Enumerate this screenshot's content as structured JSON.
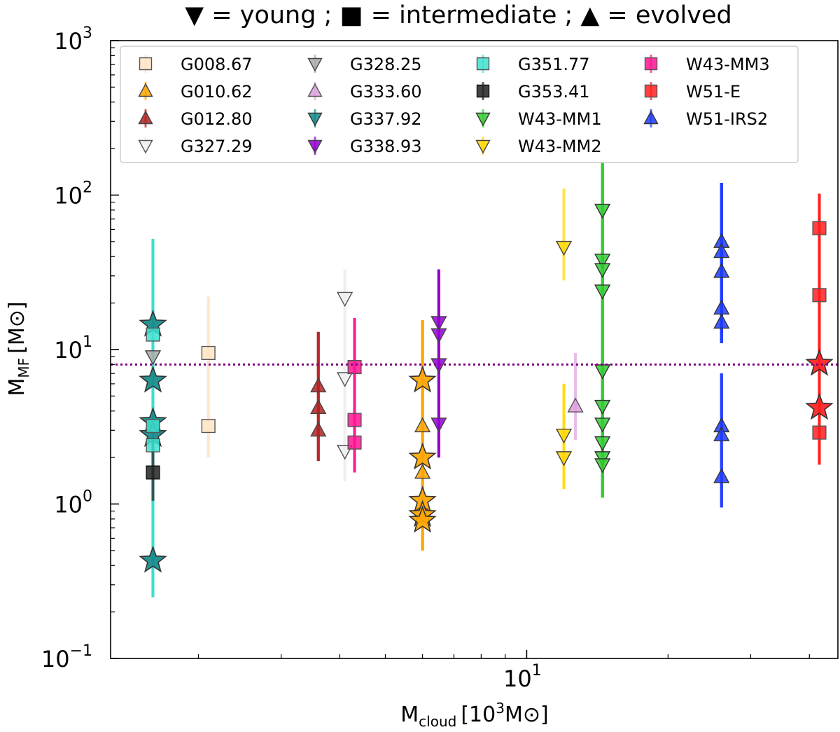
{
  "chart_data": {
    "type": "scatter",
    "title": "▼ = young ; ■ = intermediate ; ▲ = evolved",
    "xlabel": {
      "main": "M",
      "sub": "cloud",
      "rest": "[10",
      "sup": "3",
      "unit": "M⊙]"
    },
    "ylabel": {
      "main": "M",
      "sub": "MF",
      "rest": "[M⊙]"
    },
    "xscale": "log",
    "yscale": "log",
    "xlim": [
      1.3,
      46.0
    ],
    "ylim": [
      0.1,
      1000
    ],
    "y_ticks": [
      {
        "value": 0.1,
        "base": "10",
        "exp": "−1"
      },
      {
        "value": 1,
        "base": "10",
        "exp": "0"
      },
      {
        "value": 10,
        "base": "10",
        "exp": "1"
      },
      {
        "value": 100,
        "base": "10",
        "exp": "2"
      },
      {
        "value": 1000,
        "base": "10",
        "exp": "3"
      }
    ],
    "x_ticks": [
      {
        "value": 10,
        "base": "10",
        "exp": "1"
      }
    ],
    "reference_line": {
      "y": 8,
      "color": "#800080",
      "style": "dotted"
    },
    "legend_position": "top",
    "series": [
      {
        "name": "G008.67",
        "marker": "square",
        "color": "#ffe4c4",
        "edge": "#555555",
        "points": [
          {
            "x": 2.1,
            "y": 9.5,
            "lo": 2.0,
            "hi": 22
          },
          {
            "x": 2.1,
            "y": 3.2,
            "lo": 2.0,
            "hi": 22
          }
        ]
      },
      {
        "name": "G010.62",
        "marker": "triangle-up",
        "color": "#ffa500",
        "edge": "#444444",
        "points": [
          {
            "x": 6.0,
            "y": 6.3,
            "lo": 0.5,
            "hi": 15.5,
            "star": true
          },
          {
            "x": 6.0,
            "y": 3.2,
            "lo": 0.5,
            "hi": 15.5
          },
          {
            "x": 6.0,
            "y": 2.0,
            "lo": 0.5,
            "hi": 15.5,
            "star": true
          },
          {
            "x": 6.0,
            "y": 1.6,
            "lo": 0.5,
            "hi": 15.5
          },
          {
            "x": 6.0,
            "y": 1.05,
            "lo": 0.5,
            "hi": 15.5,
            "star": true
          },
          {
            "x": 6.0,
            "y": 0.85,
            "lo": 0.5,
            "hi": 15.5,
            "star": true
          },
          {
            "x": 6.0,
            "y": 0.78,
            "lo": 0.5,
            "hi": 15.5,
            "star": true
          }
        ]
      },
      {
        "name": "G012.80",
        "marker": "triangle-up",
        "color": "#b22222",
        "edge": "#444444",
        "points": [
          {
            "x": 3.6,
            "y": 5.8,
            "lo": 1.9,
            "hi": 13
          },
          {
            "x": 3.6,
            "y": 4.2,
            "lo": 1.9,
            "hi": 13
          },
          {
            "x": 3.6,
            "y": 3.0,
            "lo": 1.9,
            "hi": 13
          }
        ]
      },
      {
        "name": "G327.29",
        "marker": "triangle-down",
        "color": "#eeeeee",
        "edge": "#555555",
        "points": [
          {
            "x": 4.1,
            "y": 21.5,
            "lo": 1.4,
            "hi": 33
          },
          {
            "x": 4.1,
            "y": 6.5,
            "lo": 1.4,
            "hi": 33
          },
          {
            "x": 4.1,
            "y": 2.2,
            "lo": 1.4,
            "hi": 33
          }
        ]
      },
      {
        "name": "G328.25",
        "marker": "triangle-down",
        "color": "#a9a9a9",
        "edge": "#444444",
        "points": [
          {
            "x": 1.6,
            "y": 9.0,
            "lo": 0.25,
            "hi": 52
          }
        ]
      },
      {
        "name": "G333.60",
        "marker": "triangle-up",
        "color": "#dda0dd",
        "edge": "#555555",
        "points": [
          {
            "x": 12.7,
            "y": 4.3,
            "lo": 2.6,
            "hi": 9.5
          }
        ]
      },
      {
        "name": "G337.92",
        "marker": "triangle-down",
        "color": "#138a8a",
        "edge": "#333333",
        "points": [
          {
            "x": 1.6,
            "y": 14.5,
            "lo": 0.25,
            "hi": 52,
            "star": true
          },
          {
            "x": 1.6,
            "y": 6.3,
            "lo": 0.25,
            "hi": 52,
            "star": true
          },
          {
            "x": 1.6,
            "y": 3.4,
            "lo": 0.25,
            "hi": 52,
            "star": true
          },
          {
            "x": 1.6,
            "y": 2.8,
            "lo": 0.25,
            "hi": 52,
            "star": true
          },
          {
            "x": 1.6,
            "y": 0.43,
            "lo": 0.25,
            "hi": 52,
            "star": true
          }
        ]
      },
      {
        "name": "G338.93",
        "marker": "triangle-down",
        "color": "#9400d3",
        "edge": "#444444",
        "points": [
          {
            "x": 6.5,
            "y": 15,
            "lo": 2.0,
            "hi": 33
          },
          {
            "x": 6.5,
            "y": 12.5,
            "lo": 2.0,
            "hi": 33
          },
          {
            "x": 6.5,
            "y": 8.0,
            "lo": 2.0,
            "hi": 33
          },
          {
            "x": 6.5,
            "y": 3.3,
            "lo": 2.0,
            "hi": 33
          }
        ]
      },
      {
        "name": "G351.77",
        "marker": "square",
        "color": "#40e0d0",
        "edge": "#555555",
        "points": [
          {
            "x": 1.6,
            "y": 12.5,
            "lo": 0.25,
            "hi": 52
          },
          {
            "x": 1.6,
            "y": 3.2,
            "lo": 0.25,
            "hi": 52
          },
          {
            "x": 1.6,
            "y": 2.4,
            "lo": 0.25,
            "hi": 52
          }
        ]
      },
      {
        "name": "G353.41",
        "marker": "square",
        "color": "#222222",
        "edge": "#111111",
        "points": [
          {
            "x": 1.6,
            "y": 1.6,
            "lo": 1.05,
            "hi": 2.6
          }
        ]
      },
      {
        "name": "W43-MM1",
        "marker": "triangle-down",
        "color": "#32cd32",
        "edge": "#333333",
        "points": [
          {
            "x": 14.5,
            "y": 80,
            "lo": 1.1,
            "hi": 290
          },
          {
            "x": 14.5,
            "y": 38,
            "lo": 1.1,
            "hi": 290
          },
          {
            "x": 14.5,
            "y": 33,
            "lo": 1.1,
            "hi": 290
          },
          {
            "x": 14.5,
            "y": 24,
            "lo": 1.1,
            "hi": 290
          },
          {
            "x": 14.5,
            "y": 7.3,
            "lo": 1.1,
            "hi": 290
          },
          {
            "x": 14.5,
            "y": 4.3,
            "lo": 1.1,
            "hi": 290
          },
          {
            "x": 14.5,
            "y": 3.3,
            "lo": 1.1,
            "hi": 290
          },
          {
            "x": 14.5,
            "y": 2.5,
            "lo": 1.1,
            "hi": 290
          },
          {
            "x": 14.5,
            "y": 2.0,
            "lo": 1.1,
            "hi": 290
          },
          {
            "x": 14.5,
            "y": 1.8,
            "lo": 1.1,
            "hi": 290
          }
        ]
      },
      {
        "name": "W43-MM2",
        "marker": "triangle-down",
        "color": "#ffd700",
        "edge": "#444444",
        "points": [
          {
            "x": 12.0,
            "y": 46,
            "lo": 28,
            "hi": 110
          },
          {
            "x": 12.0,
            "y": 2.8,
            "lo": 1.25,
            "hi": 6
          },
          {
            "x": 12.0,
            "y": 2.0,
            "lo": 1.25,
            "hi": 6
          }
        ]
      },
      {
        "name": "W43-MM3",
        "marker": "square",
        "color": "#ff1493",
        "edge": "#555555",
        "points": [
          {
            "x": 4.3,
            "y": 7.7,
            "lo": 1.6,
            "hi": 16
          },
          {
            "x": 4.3,
            "y": 3.5,
            "lo": 1.6,
            "hi": 16
          },
          {
            "x": 4.3,
            "y": 2.5,
            "lo": 1.6,
            "hi": 16
          }
        ]
      },
      {
        "name": "W51-E",
        "marker": "square",
        "color": "#ff2020",
        "edge": "#555555",
        "points": [
          {
            "x": 42.0,
            "y": 61,
            "lo": 1.8,
            "hi": 102
          },
          {
            "x": 42.0,
            "y": 22.5,
            "lo": 1.8,
            "hi": 102
          },
          {
            "x": 42.0,
            "y": 8.1,
            "lo": 1.8,
            "hi": 102,
            "star": true
          },
          {
            "x": 42.0,
            "y": 4.2,
            "lo": 1.8,
            "hi": 102,
            "star": true
          },
          {
            "x": 42.0,
            "y": 2.9,
            "lo": 1.8,
            "hi": 102
          }
        ]
      },
      {
        "name": "W51-IRS2",
        "marker": "triangle-up",
        "color": "#1f3cff",
        "edge": "#333333",
        "points": [
          {
            "x": 26.0,
            "y": 50,
            "lo": 11,
            "hi": 120
          },
          {
            "x": 26.0,
            "y": 43,
            "lo": 11,
            "hi": 120
          },
          {
            "x": 26.0,
            "y": 32,
            "lo": 11,
            "hi": 120
          },
          {
            "x": 26.0,
            "y": 18.5,
            "lo": 11,
            "hi": 120
          },
          {
            "x": 26.0,
            "y": 15,
            "lo": 11,
            "hi": 120
          },
          {
            "x": 26.0,
            "y": 3.2,
            "lo": 0.95,
            "hi": 7
          },
          {
            "x": 26.0,
            "y": 2.8,
            "lo": 0.95,
            "hi": 7
          },
          {
            "x": 26.0,
            "y": 1.5,
            "lo": 0.95,
            "hi": 7
          }
        ]
      }
    ]
  }
}
